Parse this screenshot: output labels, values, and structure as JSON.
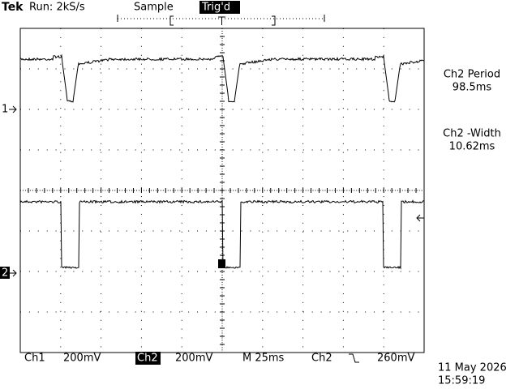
{
  "header": {
    "brand": "Tek",
    "run": "Run: 2kS/s",
    "mode": "Sample",
    "trigger_status": "Trig'd"
  },
  "markers": {
    "ch1": "1",
    "ch2": "2"
  },
  "measurements": [
    {
      "label": "Ch2 Period",
      "value": "98.5ms"
    },
    {
      "label": "Ch2 -Width",
      "value": "10.62ms"
    }
  ],
  "footer": {
    "ch1_label": "Ch1",
    "ch1_scale": "200mV",
    "ch2_label": "Ch2",
    "ch2_scale": "200mV",
    "timebase": "M 25ms",
    "trigger_source": "Ch2",
    "trigger_level": "260mV",
    "date": "11 May 2026",
    "time": "15:59:19"
  }
}
